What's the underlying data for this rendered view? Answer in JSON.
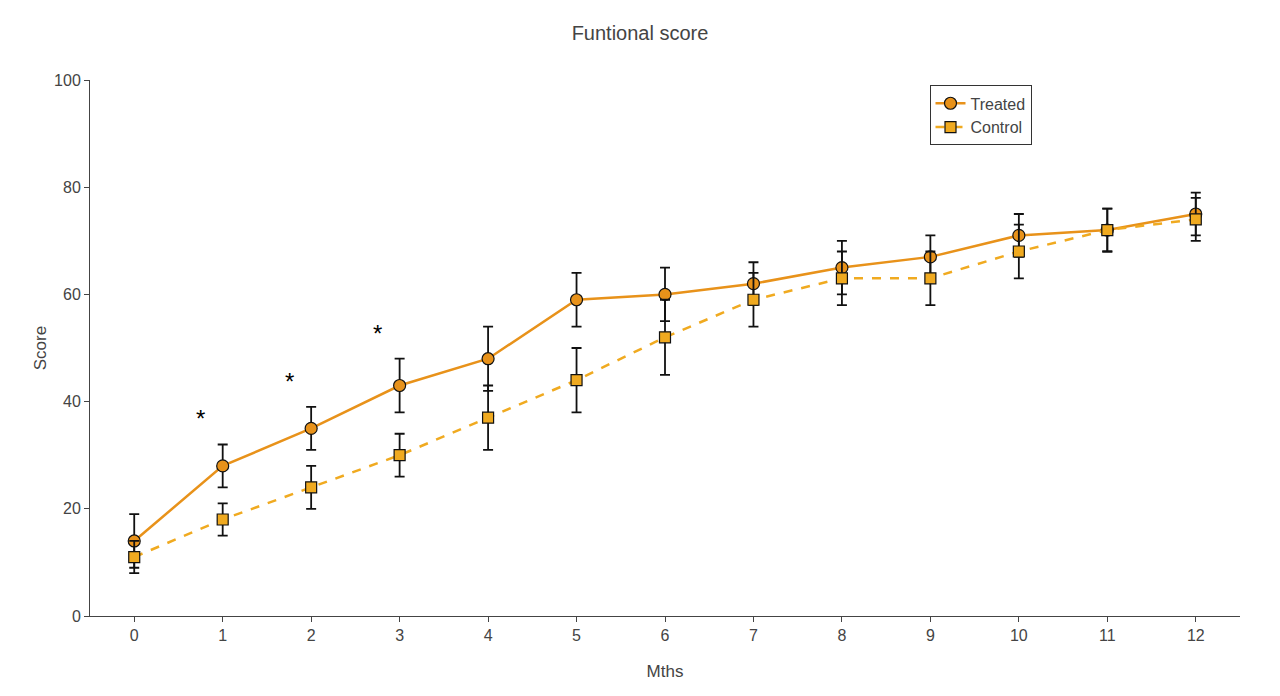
{
  "chart_data": {
    "type": "line",
    "title": "Funtional score",
    "x_label": "Mths",
    "y_label": "Score",
    "x": [
      0,
      1,
      2,
      3,
      4,
      5,
      6,
      7,
      8,
      9,
      10,
      11,
      12
    ],
    "series": [
      {
        "name": "Treated",
        "color": "#E8921A",
        "marker": "circle",
        "line_style": "solid",
        "values": [
          14,
          28,
          35,
          43,
          48,
          59,
          60,
          62,
          65,
          67,
          71,
          72,
          75
        ],
        "error": [
          5,
          4,
          4,
          5,
          6,
          5,
          5,
          4,
          5,
          4,
          4,
          4,
          4
        ]
      },
      {
        "name": "Control",
        "color": "#F0AA20",
        "marker": "square",
        "line_style": "dashed",
        "values": [
          11,
          18,
          24,
          30,
          37,
          44,
          52,
          59,
          63,
          63,
          68,
          72,
          74
        ],
        "error": [
          3,
          3,
          4,
          4,
          6,
          6,
          7,
          5,
          5,
          5,
          5,
          4,
          4
        ]
      }
    ],
    "annotations": [
      {
        "text": "*",
        "x": 1
      },
      {
        "text": "*",
        "x": 2
      },
      {
        "text": "*",
        "x": 3
      }
    ],
    "xlim": [
      -0.5,
      12.5
    ],
    "xticks": [
      0,
      1,
      2,
      3,
      4,
      5,
      6,
      7,
      8,
      9,
      10,
      11,
      12
    ],
    "ylim": [
      0,
      100
    ],
    "yticks": [
      0,
      20,
      40,
      60,
      80,
      100
    ],
    "grid": false,
    "legend": "upper right"
  }
}
